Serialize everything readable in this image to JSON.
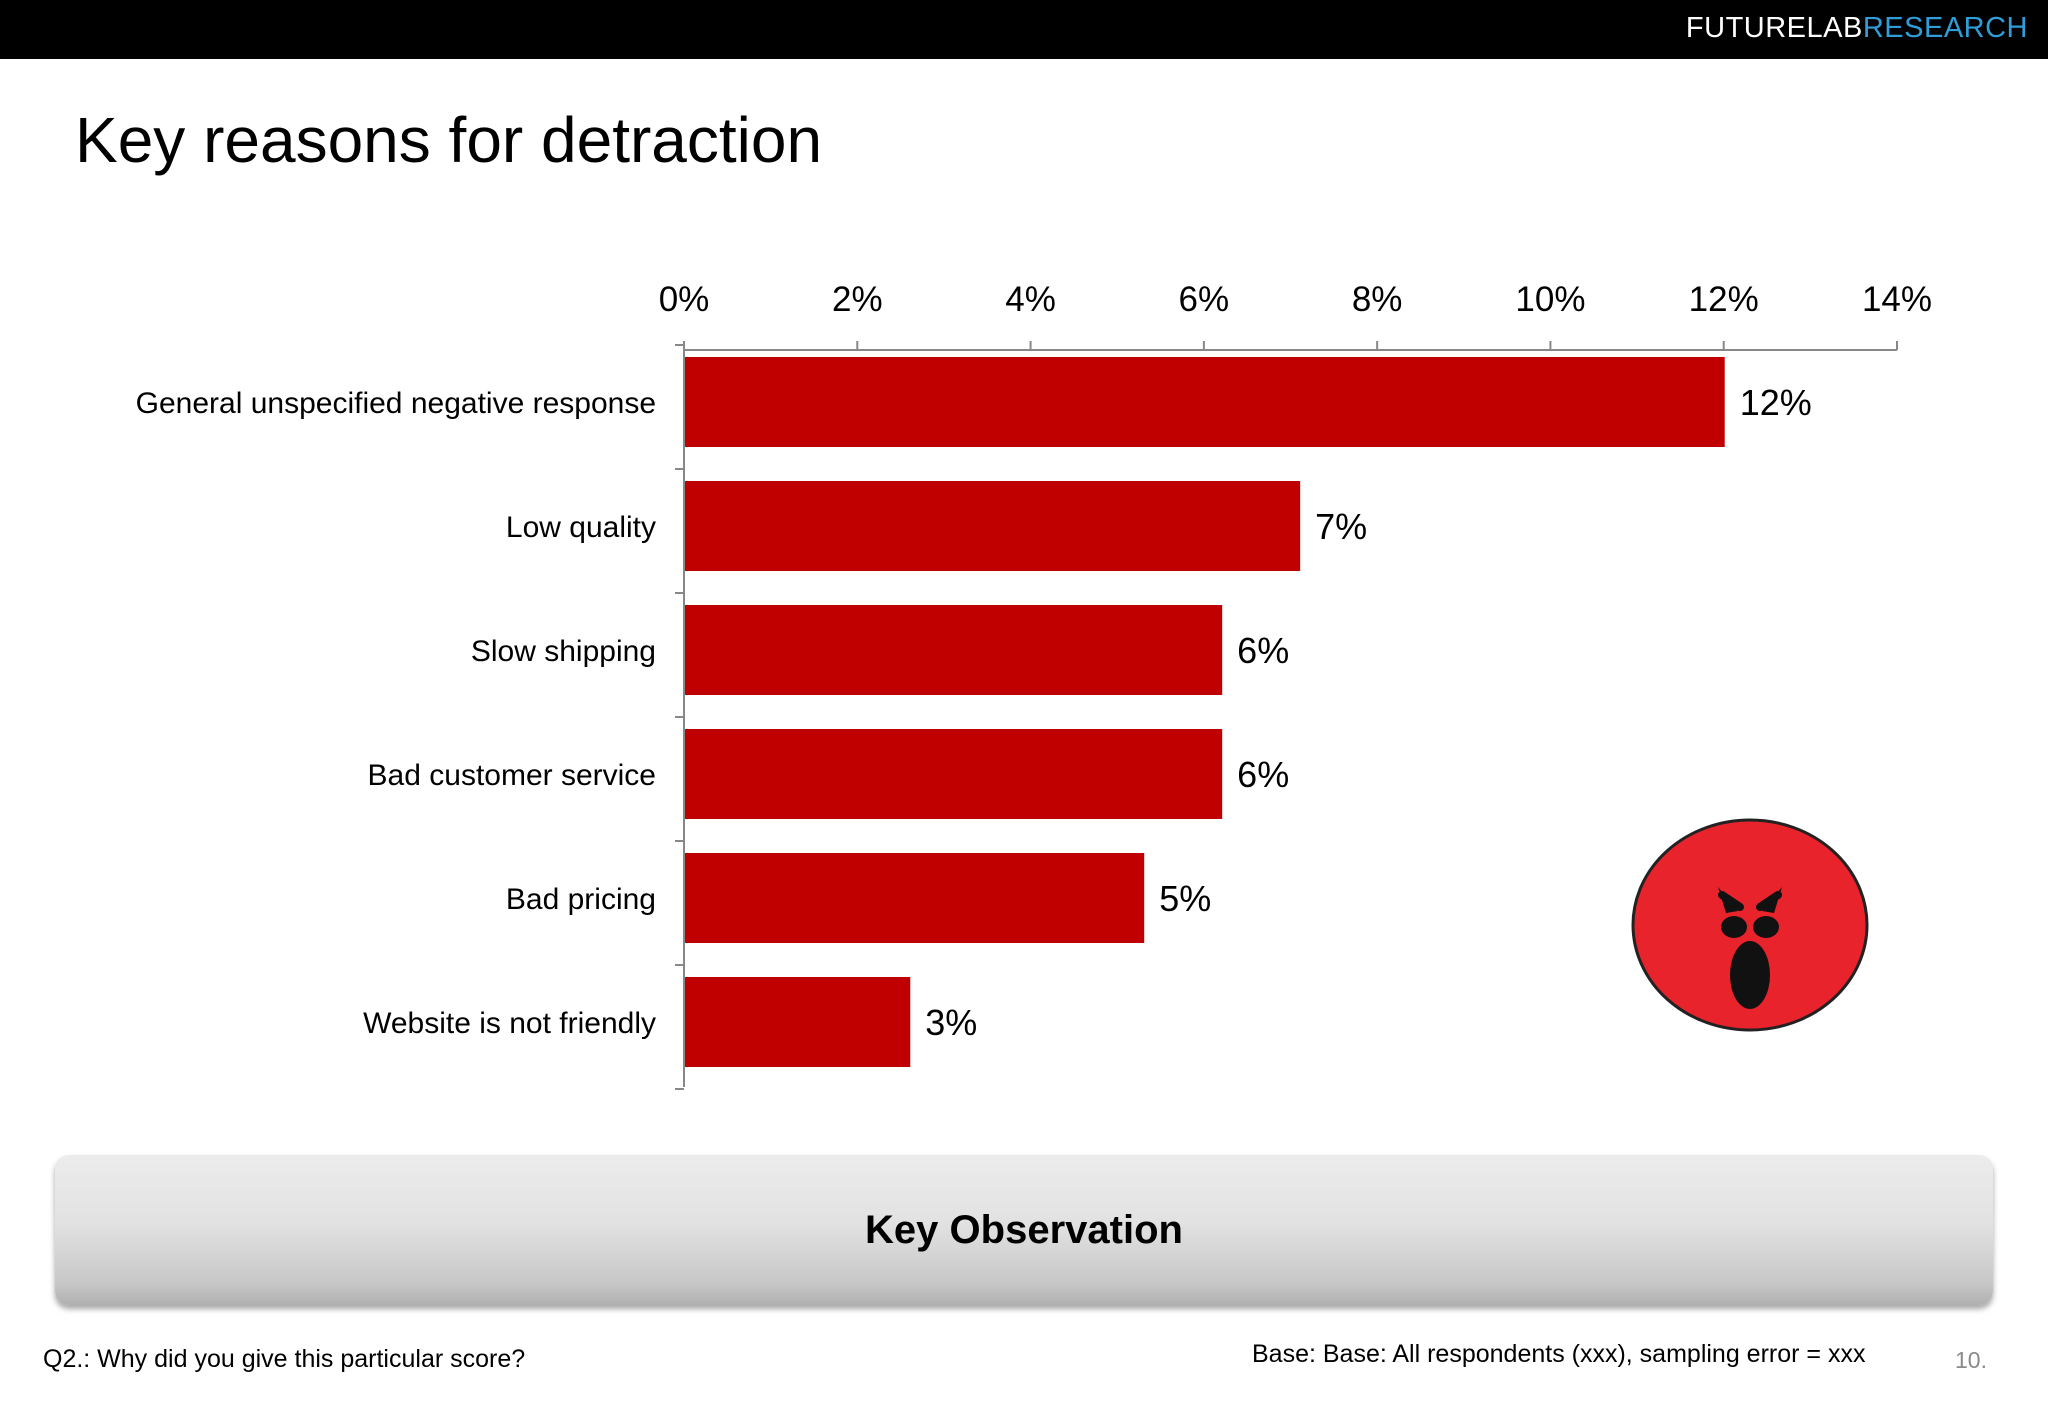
{
  "brand": {
    "part1": "FUTURELAB",
    "part2": "RESEARCH"
  },
  "title": "Key reasons for detraction",
  "chart_data": {
    "type": "bar",
    "orientation": "horizontal",
    "categories": [
      "General unspecified negative response",
      "Low quality",
      "Slow shipping",
      "Bad customer service",
      "Bad pricing",
      "Website is not friendly"
    ],
    "values": [
      12,
      7.1,
      6.2,
      6.2,
      5.3,
      2.6
    ],
    "data_labels": [
      "12%",
      "7%",
      "6%",
      "6%",
      "5%",
      "3%"
    ],
    "xlim": [
      0,
      14
    ],
    "xticks": [
      0,
      2,
      4,
      6,
      8,
      10,
      12,
      14
    ],
    "xtick_labels": [
      "0%",
      "2%",
      "4%",
      "6%",
      "8%",
      "10%",
      "12%",
      "14%"
    ],
    "axis_position": "top",
    "bar_color": "#c00000",
    "grid": false,
    "legend": "none"
  },
  "emoji_icon": "angry-face-icon",
  "observation": {
    "title": "Key Observation"
  },
  "footer": {
    "question": "Q2.: Why did you give this particular score?",
    "base": "Base:  Base: All respondents (xxx), sampling error = xxx",
    "page": "10."
  }
}
